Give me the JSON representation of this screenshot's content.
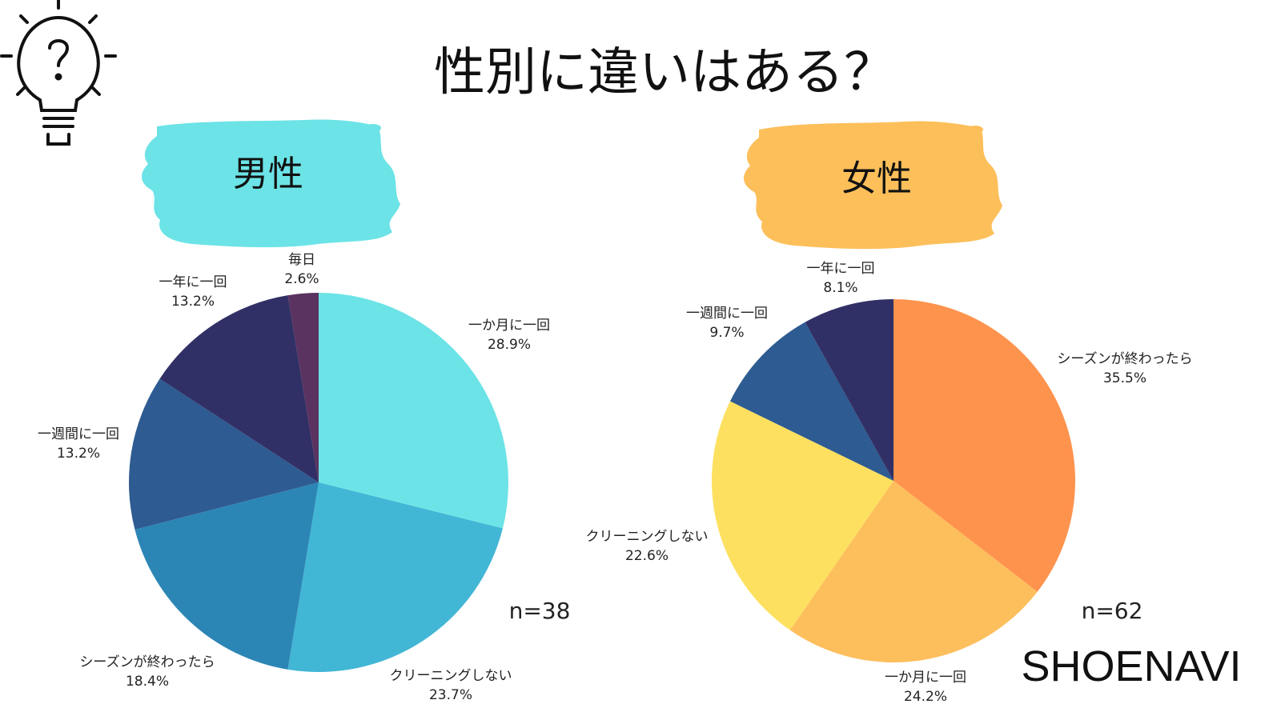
{
  "title": "性別に違いはある？",
  "brand": "SHOENAVI",
  "icon": "lightbulb-question-icon",
  "chart_data": [
    {
      "type": "pie",
      "title": "男性",
      "badge_color": "#6ce3e6",
      "n_label": "n=38",
      "start_angle_deg": 0,
      "direction": "clockwise",
      "slices": [
        {
          "label": "一か月に一回",
          "value": 28.9,
          "value_label": "28.9%",
          "color": "#6ce3e6"
        },
        {
          "label": "クリーニングしない",
          "value": 23.7,
          "value_label": "23.7%",
          "color": "#42b6d5"
        },
        {
          "label": "シーズンが終わったら",
          "value": 18.4,
          "value_label": "18.4%",
          "color": "#2c86b5"
        },
        {
          "label": "一週間に一回",
          "value": 13.2,
          "value_label": "13.2%",
          "color": "#2e5b91"
        },
        {
          "label": "一年に一回",
          "value": 13.2,
          "value_label": "13.2%",
          "color": "#313066"
        },
        {
          "label": "毎日",
          "value": 2.6,
          "value_label": "2.6%",
          "color": "#5a3360"
        }
      ]
    },
    {
      "type": "pie",
      "title": "女性",
      "badge_color": "#fcbf5a",
      "n_label": "n=62",
      "start_angle_deg": 0,
      "direction": "clockwise",
      "slices": [
        {
          "label": "シーズンが終わったら",
          "value": 35.5,
          "value_label": "35.5%",
          "color": "#fe934e"
        },
        {
          "label": "一か月に一回",
          "value": 24.2,
          "value_label": "24.2%",
          "color": "#fdbe5c"
        },
        {
          "label": "クリーニングしない",
          "value": 22.6,
          "value_label": "22.6%",
          "color": "#fde05f"
        },
        {
          "label": "一週間に一回",
          "value": 9.7,
          "value_label": "9.7%",
          "color": "#2e5b91"
        },
        {
          "label": "一年に一回",
          "value": 8.1,
          "value_label": "8.1%",
          "color": "#313066"
        }
      ]
    }
  ]
}
